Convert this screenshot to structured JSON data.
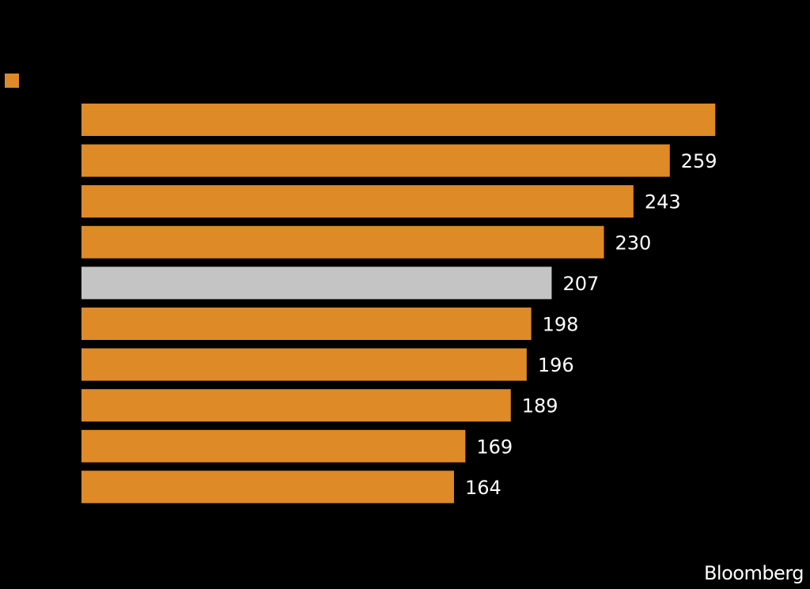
{
  "chart_data": {
    "type": "bar",
    "orientation": "horizontal",
    "values": [
      279,
      259,
      243,
      230,
      207,
      198,
      196,
      189,
      169,
      164
    ],
    "value_labels": [
      "",
      "259",
      "243",
      "230",
      "207",
      "198",
      "196",
      "189",
      "169",
      "164"
    ],
    "highlight_index": 4,
    "colors": {
      "bar": "#dd8a27",
      "highlight": "#c4c4c4",
      "background": "#000000",
      "text": "#ffffff"
    },
    "legend_position": "top-left",
    "grid": false
  },
  "source": "Bloomberg"
}
